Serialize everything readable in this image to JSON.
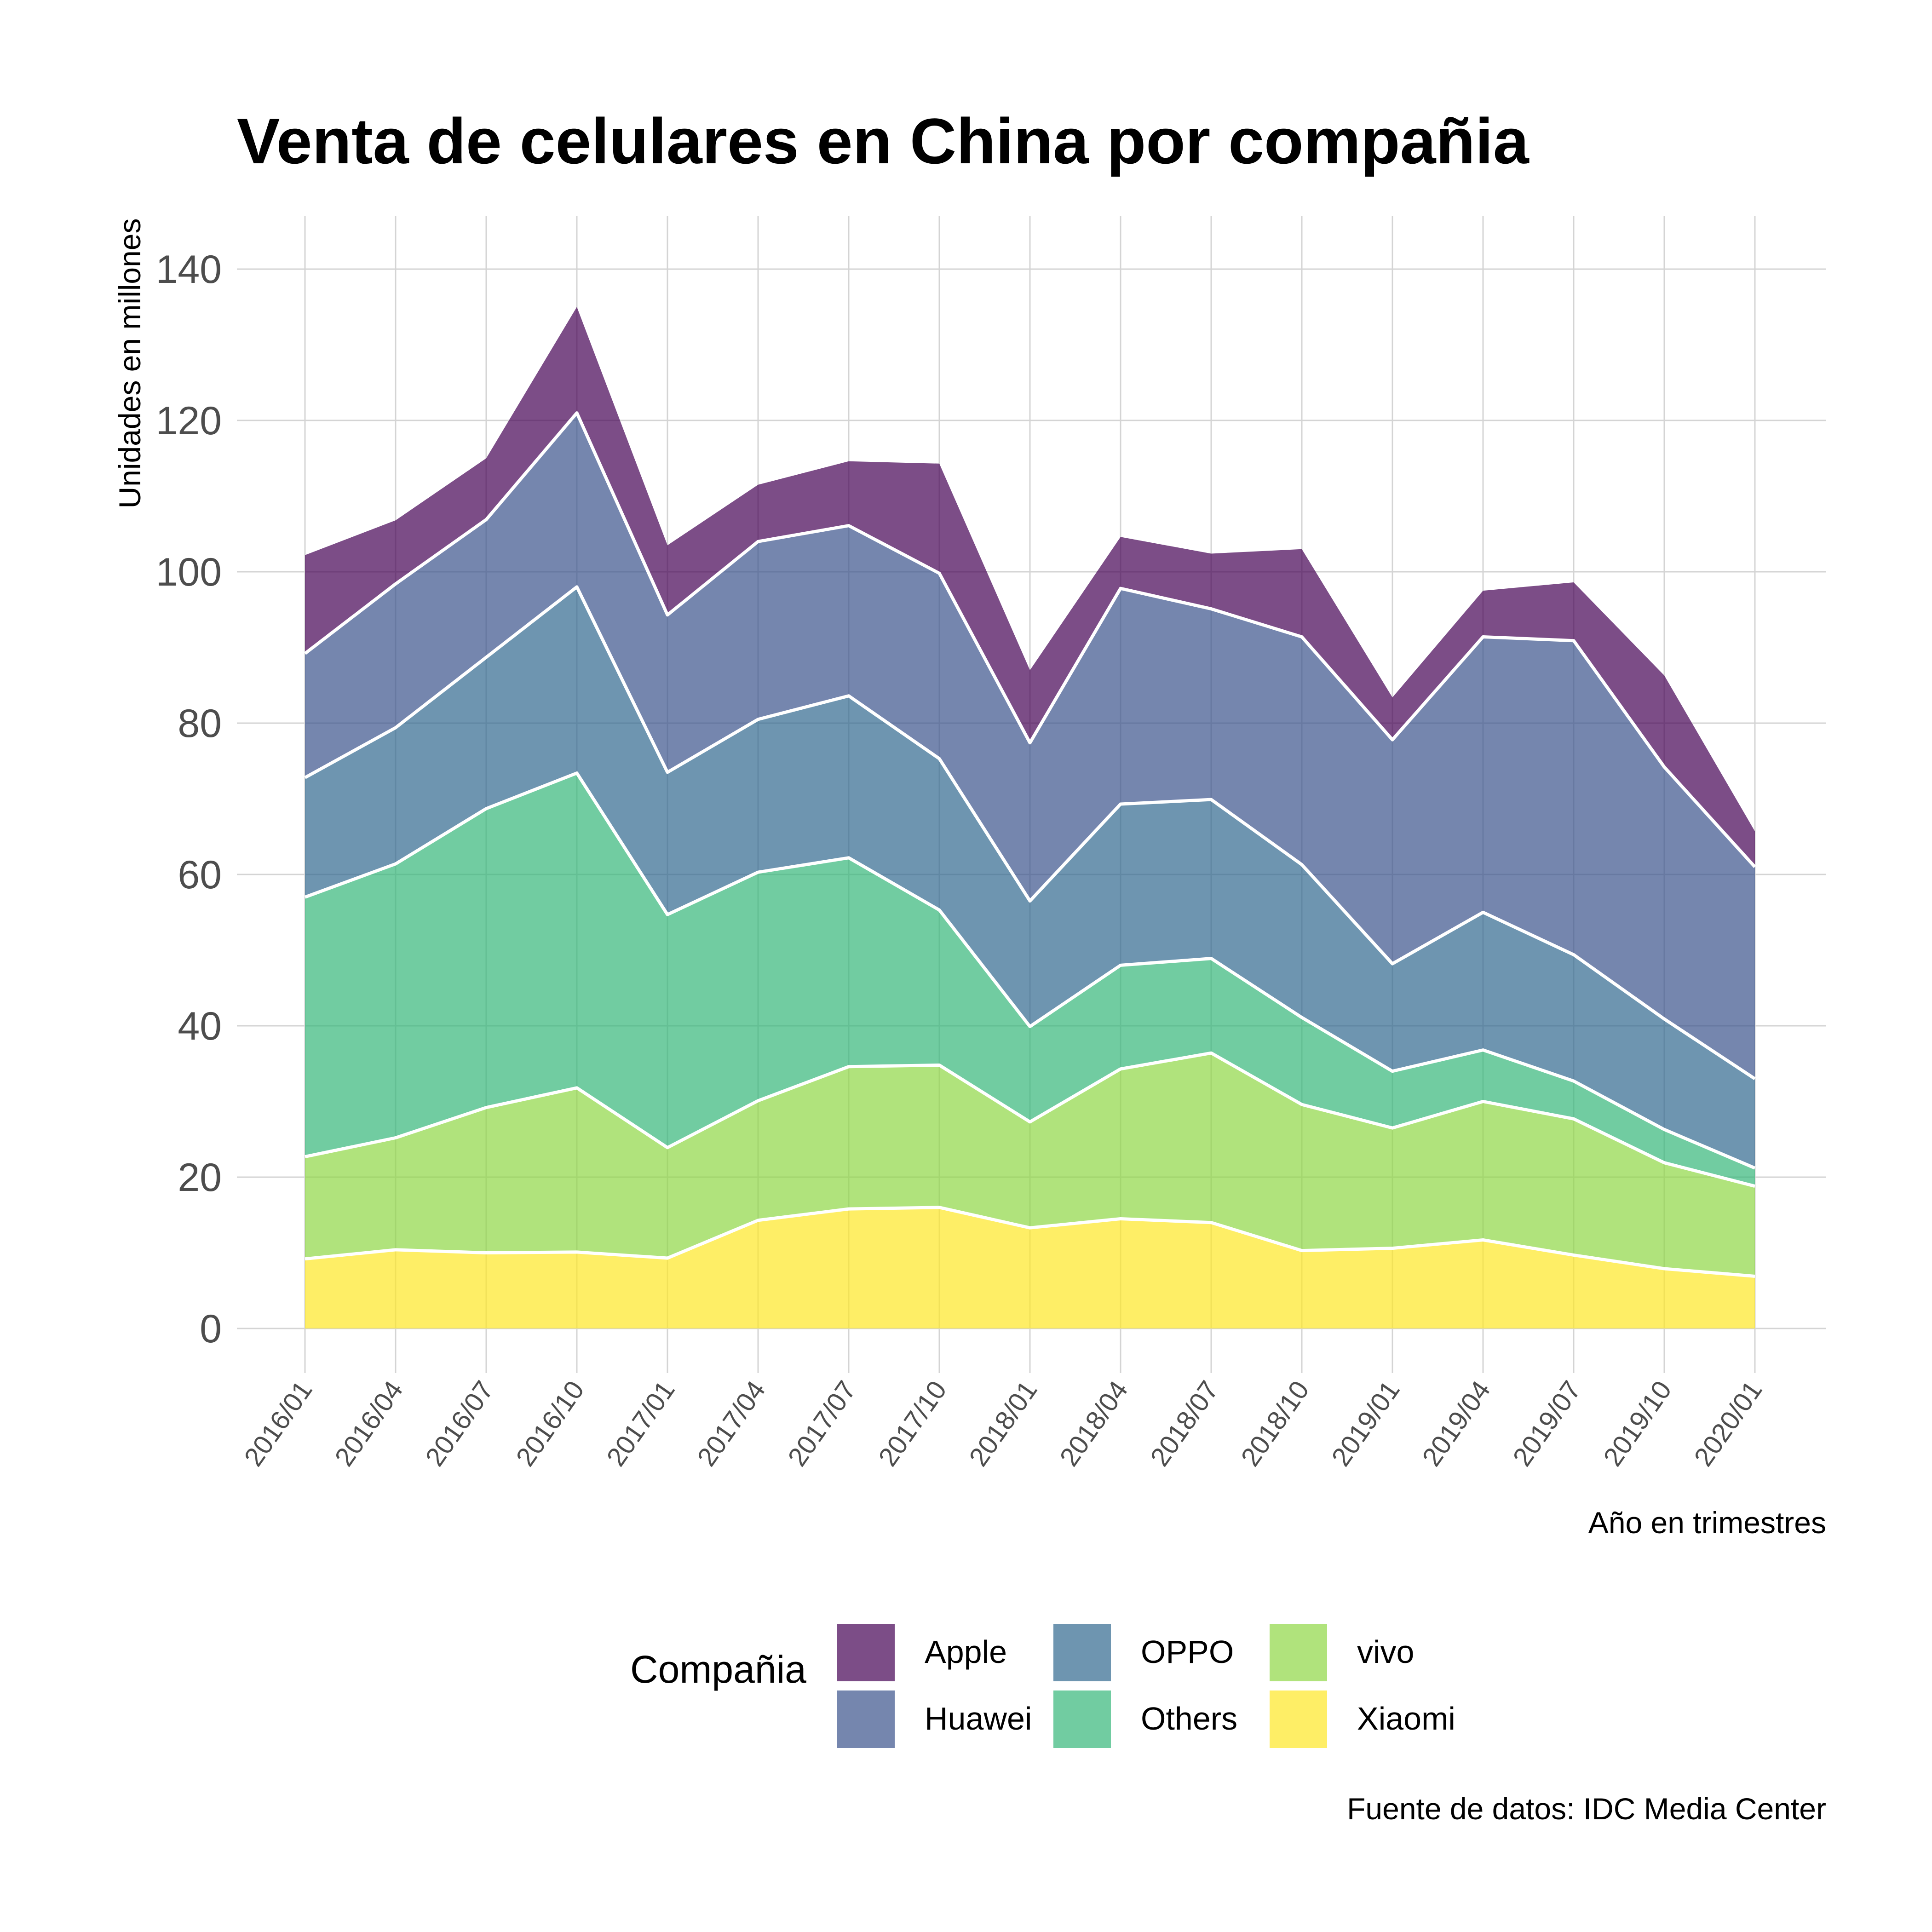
{
  "chart_data": {
    "type": "area",
    "stacked": true,
    "title": "Venta de celulares en China por compañia",
    "xlabel": "Año en trimestres",
    "ylabel": "Unidades en millones",
    "caption": "Fuente de datos: IDC Media Center",
    "legend_title": "Compañia",
    "legend_position": "bottom",
    "grid": true,
    "ylim": [
      0,
      147
    ],
    "yticks": [
      0,
      20,
      40,
      60,
      80,
      100,
      120,
      140
    ],
    "x": [
      "2016/01",
      "2016/04",
      "2016/07",
      "2016/10",
      "2017/01",
      "2017/04",
      "2017/07",
      "2017/10",
      "2018/01",
      "2018/04",
      "2018/07",
      "2018/10",
      "2019/01",
      "2019/04",
      "2019/07",
      "2019/10",
      "2020/01"
    ],
    "stack_order_bottom_to_top": [
      "Xiaomi",
      "vivo",
      "Others",
      "OPPO",
      "Huawei",
      "Apple"
    ],
    "legend_order": [
      "Apple",
      "Huawei",
      "OPPO",
      "Others",
      "vivo",
      "Xiaomi"
    ],
    "series": [
      {
        "name": "Xiaomi",
        "color": "#FDE725",
        "values": [
          9.2,
          10.4,
          10.0,
          10.1,
          9.3,
          14.3,
          15.8,
          16.0,
          13.3,
          14.5,
          14.0,
          10.3,
          10.6,
          11.7,
          9.7,
          7.9,
          6.9
        ]
      },
      {
        "name": "vivo",
        "color": "#8FD744",
        "values": [
          13.5,
          14.8,
          19.2,
          21.7,
          14.6,
          15.8,
          18.8,
          18.8,
          14.0,
          19.8,
          22.4,
          19.3,
          15.9,
          18.3,
          18.0,
          14.0,
          11.9
        ]
      },
      {
        "name": "Others",
        "color": "#35B779",
        "values": [
          34.3,
          36.2,
          39.5,
          41.6,
          30.8,
          30.2,
          27.6,
          20.5,
          12.6,
          13.7,
          12.5,
          11.5,
          7.5,
          6.8,
          5.0,
          4.4,
          2.4
        ]
      },
      {
        "name": "OPPO",
        "color": "#31688E",
        "values": [
          15.8,
          18.0,
          20.0,
          24.6,
          18.8,
          20.2,
          21.4,
          20.0,
          16.6,
          21.3,
          21.0,
          20.2,
          14.2,
          18.2,
          16.7,
          14.6,
          11.8
        ]
      },
      {
        "name": "Huawei",
        "color": "#3B528B",
        "values": [
          16.4,
          19.0,
          18.2,
          23.0,
          20.8,
          23.5,
          22.5,
          24.5,
          20.9,
          28.5,
          25.2,
          30.1,
          29.6,
          36.4,
          41.5,
          33.3,
          28.0
        ]
      },
      {
        "name": "Apple",
        "color": "#440154",
        "values": [
          13.0,
          8.4,
          8.1,
          14.0,
          9.2,
          7.5,
          8.5,
          14.5,
          9.6,
          6.8,
          7.3,
          11.6,
          5.6,
          6.1,
          7.7,
          12.1,
          4.7
        ]
      }
    ]
  }
}
